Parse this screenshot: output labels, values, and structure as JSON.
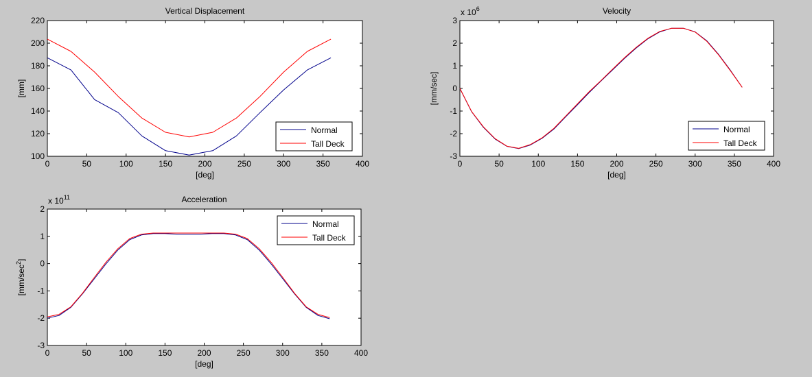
{
  "chart_data": [
    {
      "type": "line",
      "title": "Vertical Displacement",
      "xlabel": "[deg]",
      "ylabel": "[mm]",
      "exponent_label": "",
      "xlim": [
        0,
        400
      ],
      "ylim": [
        100,
        220
      ],
      "xticks": [
        0,
        50,
        100,
        150,
        200,
        250,
        300,
        350,
        400
      ],
      "yticks": [
        100,
        120,
        140,
        160,
        180,
        200,
        220
      ],
      "ytick_labels": [
        "100",
        "120",
        "140",
        "160",
        "180",
        "200",
        "220"
      ],
      "grid": false,
      "legend_position": "bottom-right",
      "series": [
        {
          "name": "Normal",
          "color": "#00008b",
          "x": [
            0,
            30,
            60,
            90,
            120,
            150,
            180,
            210,
            240,
            270,
            300,
            330,
            360
          ],
          "y": [
            187.1,
            176.3,
            150.1,
            138.6,
            118.0,
            105.0,
            101.1,
            105.0,
            118.0,
            138.6,
            158.7,
            176.3,
            187.1
          ]
        },
        {
          "name": "Tall Deck",
          "color": "#ff0000",
          "x": [
            0,
            30,
            60,
            90,
            120,
            150,
            180,
            210,
            240,
            270,
            300,
            330,
            360
          ],
          "y": [
            203.6,
            192.7,
            174.5,
            152.9,
            133.8,
            121.2,
            117.1,
            121.2,
            133.8,
            152.9,
            174.5,
            192.7,
            203.6
          ]
        }
      ]
    },
    {
      "type": "line",
      "title": "Velocity",
      "xlabel": "[deg]",
      "ylabel": "[mm/sec]",
      "exponent_label": "x 10",
      "exponent_power": "6",
      "xlim": [
        0,
        400
      ],
      "ylim": [
        -3,
        3
      ],
      "xticks": [
        0,
        50,
        100,
        150,
        200,
        250,
        300,
        350,
        400
      ],
      "yticks": [
        -3,
        -2,
        -1,
        0,
        1,
        2,
        3
      ],
      "ytick_labels": [
        "-3",
        "-2",
        "-1",
        "0",
        "1",
        "2",
        "3"
      ],
      "grid": false,
      "legend_position": "bottom-right",
      "series": [
        {
          "name": "Normal",
          "color": "#00008b",
          "x": [
            0,
            15,
            30,
            45,
            60,
            75,
            90,
            105,
            120,
            135,
            150,
            165,
            180,
            195,
            210,
            225,
            240,
            255,
            270,
            285,
            300,
            315,
            330,
            345,
            360
          ],
          "y": [
            0.0,
            -1.03,
            -1.72,
            -2.24,
            -2.56,
            -2.66,
            -2.5,
            -2.2,
            -1.79,
            -1.25,
            -0.72,
            -0.18,
            0.33,
            0.83,
            1.33,
            1.79,
            2.2,
            2.5,
            2.66,
            2.66,
            2.5,
            2.1,
            1.5,
            0.8,
            0.05
          ]
        },
        {
          "name": "Tall Deck",
          "color": "#ff0000",
          "x": [
            0,
            15,
            30,
            45,
            60,
            75,
            90,
            105,
            120,
            135,
            150,
            165,
            180,
            195,
            210,
            225,
            240,
            255,
            270,
            285,
            300,
            315,
            330,
            345,
            360
          ],
          "y": [
            0.0,
            -1.02,
            -1.7,
            -2.22,
            -2.55,
            -2.65,
            -2.48,
            -2.18,
            -1.76,
            -1.22,
            -0.68,
            -0.14,
            0.35,
            0.86,
            1.36,
            1.82,
            2.22,
            2.52,
            2.66,
            2.66,
            2.49,
            2.08,
            1.48,
            0.78,
            0.05
          ]
        }
      ]
    },
    {
      "type": "line",
      "title": "Acceleration",
      "xlabel": "[deg]",
      "ylabel": "[mm/sec",
      "ylabel_superscript": "2",
      "ylabel_suffix": "]",
      "exponent_label": "x 10",
      "exponent_power": "11",
      "xlim": [
        0,
        400
      ],
      "ylim": [
        -3,
        2
      ],
      "xticks": [
        0,
        50,
        100,
        150,
        200,
        250,
        300,
        350,
        400
      ],
      "yticks": [
        -3,
        -2,
        -1,
        0,
        1,
        2
      ],
      "ytick_labels": [
        "-3",
        "-2",
        "-1",
        "0",
        "1",
        "2"
      ],
      "grid": false,
      "legend_position": "top-right",
      "series": [
        {
          "name": "Normal",
          "color": "#00008b",
          "x": [
            0,
            15,
            30,
            45,
            60,
            75,
            90,
            105,
            120,
            135,
            150,
            165,
            180,
            195,
            210,
            225,
            240,
            255,
            270,
            285,
            300,
            315,
            330,
            345,
            360
          ],
          "y": [
            -2.0,
            -1.9,
            -1.6,
            -1.1,
            -0.55,
            0.0,
            0.5,
            0.88,
            1.05,
            1.1,
            1.1,
            1.08,
            1.08,
            1.08,
            1.1,
            1.1,
            1.05,
            0.88,
            0.5,
            0.0,
            -0.55,
            -1.1,
            -1.6,
            -1.9,
            -2.02
          ]
        },
        {
          "name": "Tall Deck",
          "color": "#ff0000",
          "x": [
            0,
            15,
            30,
            45,
            60,
            75,
            90,
            105,
            120,
            135,
            150,
            165,
            180,
            195,
            210,
            225,
            240,
            255,
            270,
            285,
            300,
            315,
            330,
            345,
            360
          ],
          "y": [
            -1.95,
            -1.86,
            -1.58,
            -1.08,
            -0.5,
            0.06,
            0.55,
            0.92,
            1.08,
            1.12,
            1.12,
            1.12,
            1.12,
            1.12,
            1.12,
            1.12,
            1.08,
            0.92,
            0.55,
            0.06,
            -0.5,
            -1.08,
            -1.58,
            -1.86,
            -1.98
          ]
        }
      ]
    }
  ]
}
